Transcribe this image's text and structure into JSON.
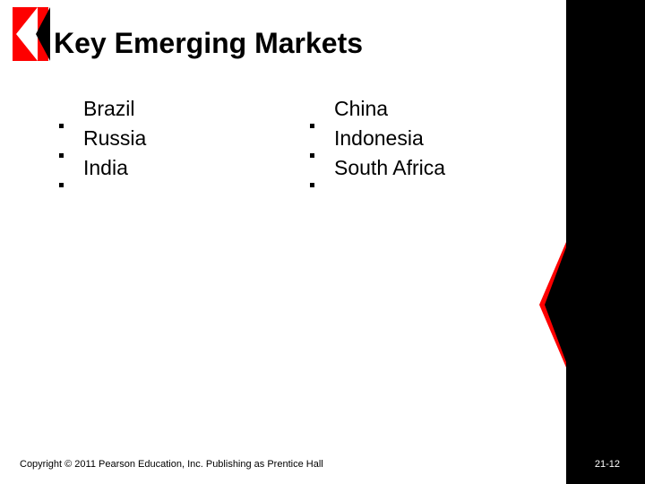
{
  "title": "Key Emerging Markets",
  "columns": {
    "left": [
      "Brazil",
      "Russia",
      "India"
    ],
    "right": [
      "China",
      "Indonesia",
      "South Africa"
    ]
  },
  "copyright": "Copyright © 2011 Pearson Education, Inc.  Publishing as Prentice Hall",
  "pagenum": "21-12",
  "colors": {
    "accent": "#fe0000",
    "black": "#000000",
    "white": "#ffffff"
  }
}
